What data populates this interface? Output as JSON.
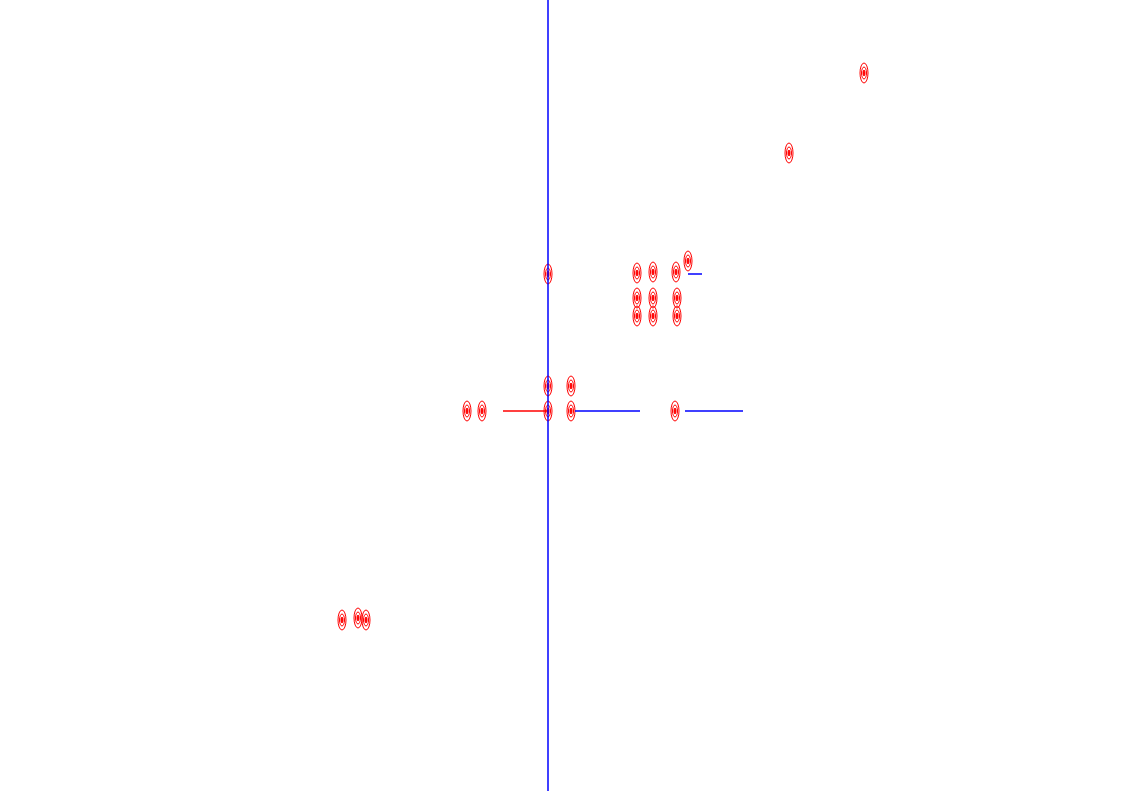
{
  "chart_data": {
    "type": "scatter",
    "tick_labels": false,
    "grid": false,
    "xlim": [
      0,
      1133
    ],
    "ylim": [
      0,
      791
    ],
    "series": [
      {
        "type": "scatter",
        "color": "#ff0000",
        "marker": "ellipse",
        "x": [
          864,
          789,
          548,
          637,
          653,
          676,
          688,
          637,
          653,
          677,
          637,
          653,
          677,
          548,
          571,
          548,
          571,
          675,
          467,
          482,
          342,
          358,
          366
        ],
        "y": [
          718,
          638,
          517,
          518,
          519,
          519,
          530,
          493,
          493,
          493,
          475,
          475,
          475,
          405,
          405,
          380,
          380,
          380,
          380,
          380,
          171,
          173,
          171
        ]
      },
      {
        "type": "line",
        "color": "#ff0000",
        "x": [
          503,
          548
        ],
        "y": [
          380,
          380
        ]
      },
      {
        "type": "line",
        "color": "#0000ff",
        "x": [
          548,
          548
        ],
        "y": [
          0,
          791
        ]
      },
      {
        "type": "line",
        "color": "#0000ff",
        "x": [
          575,
          640
        ],
        "y": [
          380,
          380
        ]
      },
      {
        "type": "line",
        "color": "#0000ff",
        "x": [
          685,
          743
        ],
        "y": [
          380,
          380
        ]
      },
      {
        "type": "line",
        "color": "#0000ff",
        "x": [
          688,
          702
        ],
        "y": [
          517,
          517
        ]
      }
    ]
  }
}
